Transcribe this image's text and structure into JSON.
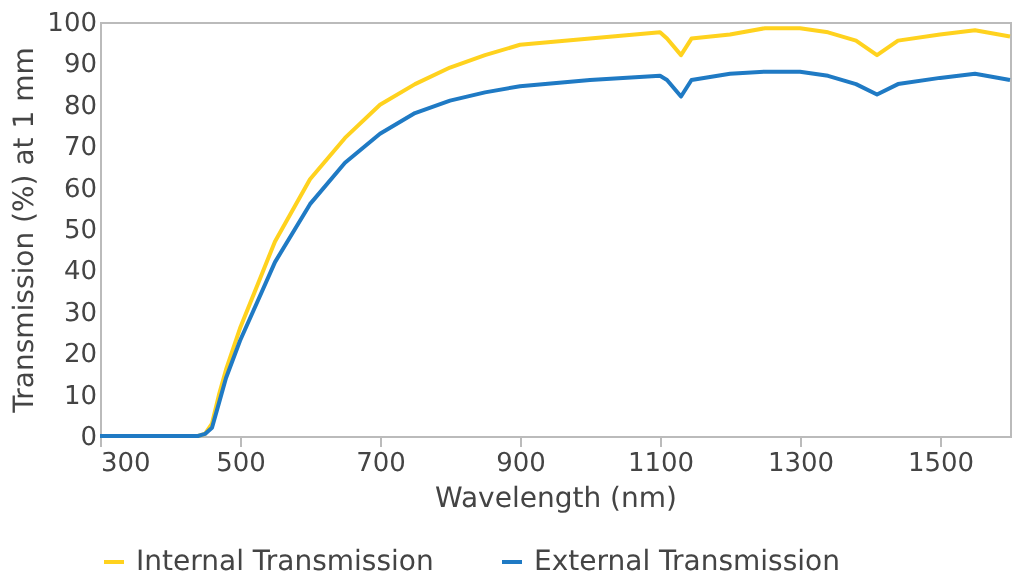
{
  "chart_data": {
    "type": "line",
    "xlabel": "Wavelength (nm)",
    "ylabel": "Transmission (%) at 1 mm",
    "xlim": [
      300,
      1600
    ],
    "xticks": [
      300,
      500,
      700,
      900,
      1100,
      1300,
      1500
    ],
    "ylim": [
      0,
      100
    ],
    "yticks": [
      0,
      10,
      20,
      30,
      40,
      50,
      60,
      70,
      80,
      90,
      100
    ],
    "grid": false,
    "legend": "bottom",
    "marker": "none",
    "line_style": "solid",
    "series": [
      {
        "name": "Internal Transmission",
        "color": "#ffd21e",
        "x": [
          300,
          440,
          450,
          460,
          470,
          480,
          500,
          550,
          600,
          650,
          700,
          750,
          800,
          850,
          900,
          1000,
          1100,
          1110,
          1130,
          1145,
          1200,
          1250,
          1300,
          1340,
          1380,
          1410,
          1440,
          1500,
          1550,
          1600
        ],
        "values": [
          0,
          0,
          0.5,
          3,
          10,
          16,
          26,
          47,
          62,
          72,
          80,
          85,
          89,
          92,
          94.5,
          96,
          97.5,
          96,
          92,
          96,
          97,
          98.5,
          98.5,
          97.5,
          95.5,
          92,
          95.5,
          97,
          98,
          96.5
        ]
      },
      {
        "name": "External Transmission",
        "color": "#1f7ac4",
        "x": [
          300,
          440,
          450,
          460,
          470,
          480,
          500,
          550,
          600,
          650,
          700,
          750,
          800,
          850,
          900,
          1000,
          1100,
          1110,
          1130,
          1145,
          1200,
          1250,
          1300,
          1340,
          1380,
          1410,
          1440,
          1500,
          1550,
          1600
        ],
        "values": [
          0,
          0,
          0.5,
          2,
          8,
          14,
          23,
          42,
          56,
          66,
          73,
          78,
          81,
          83,
          84.5,
          86,
          87,
          86,
          82,
          86,
          87.5,
          88,
          88,
          87,
          85,
          82.5,
          85,
          86.5,
          87.5,
          86
        ]
      }
    ]
  }
}
